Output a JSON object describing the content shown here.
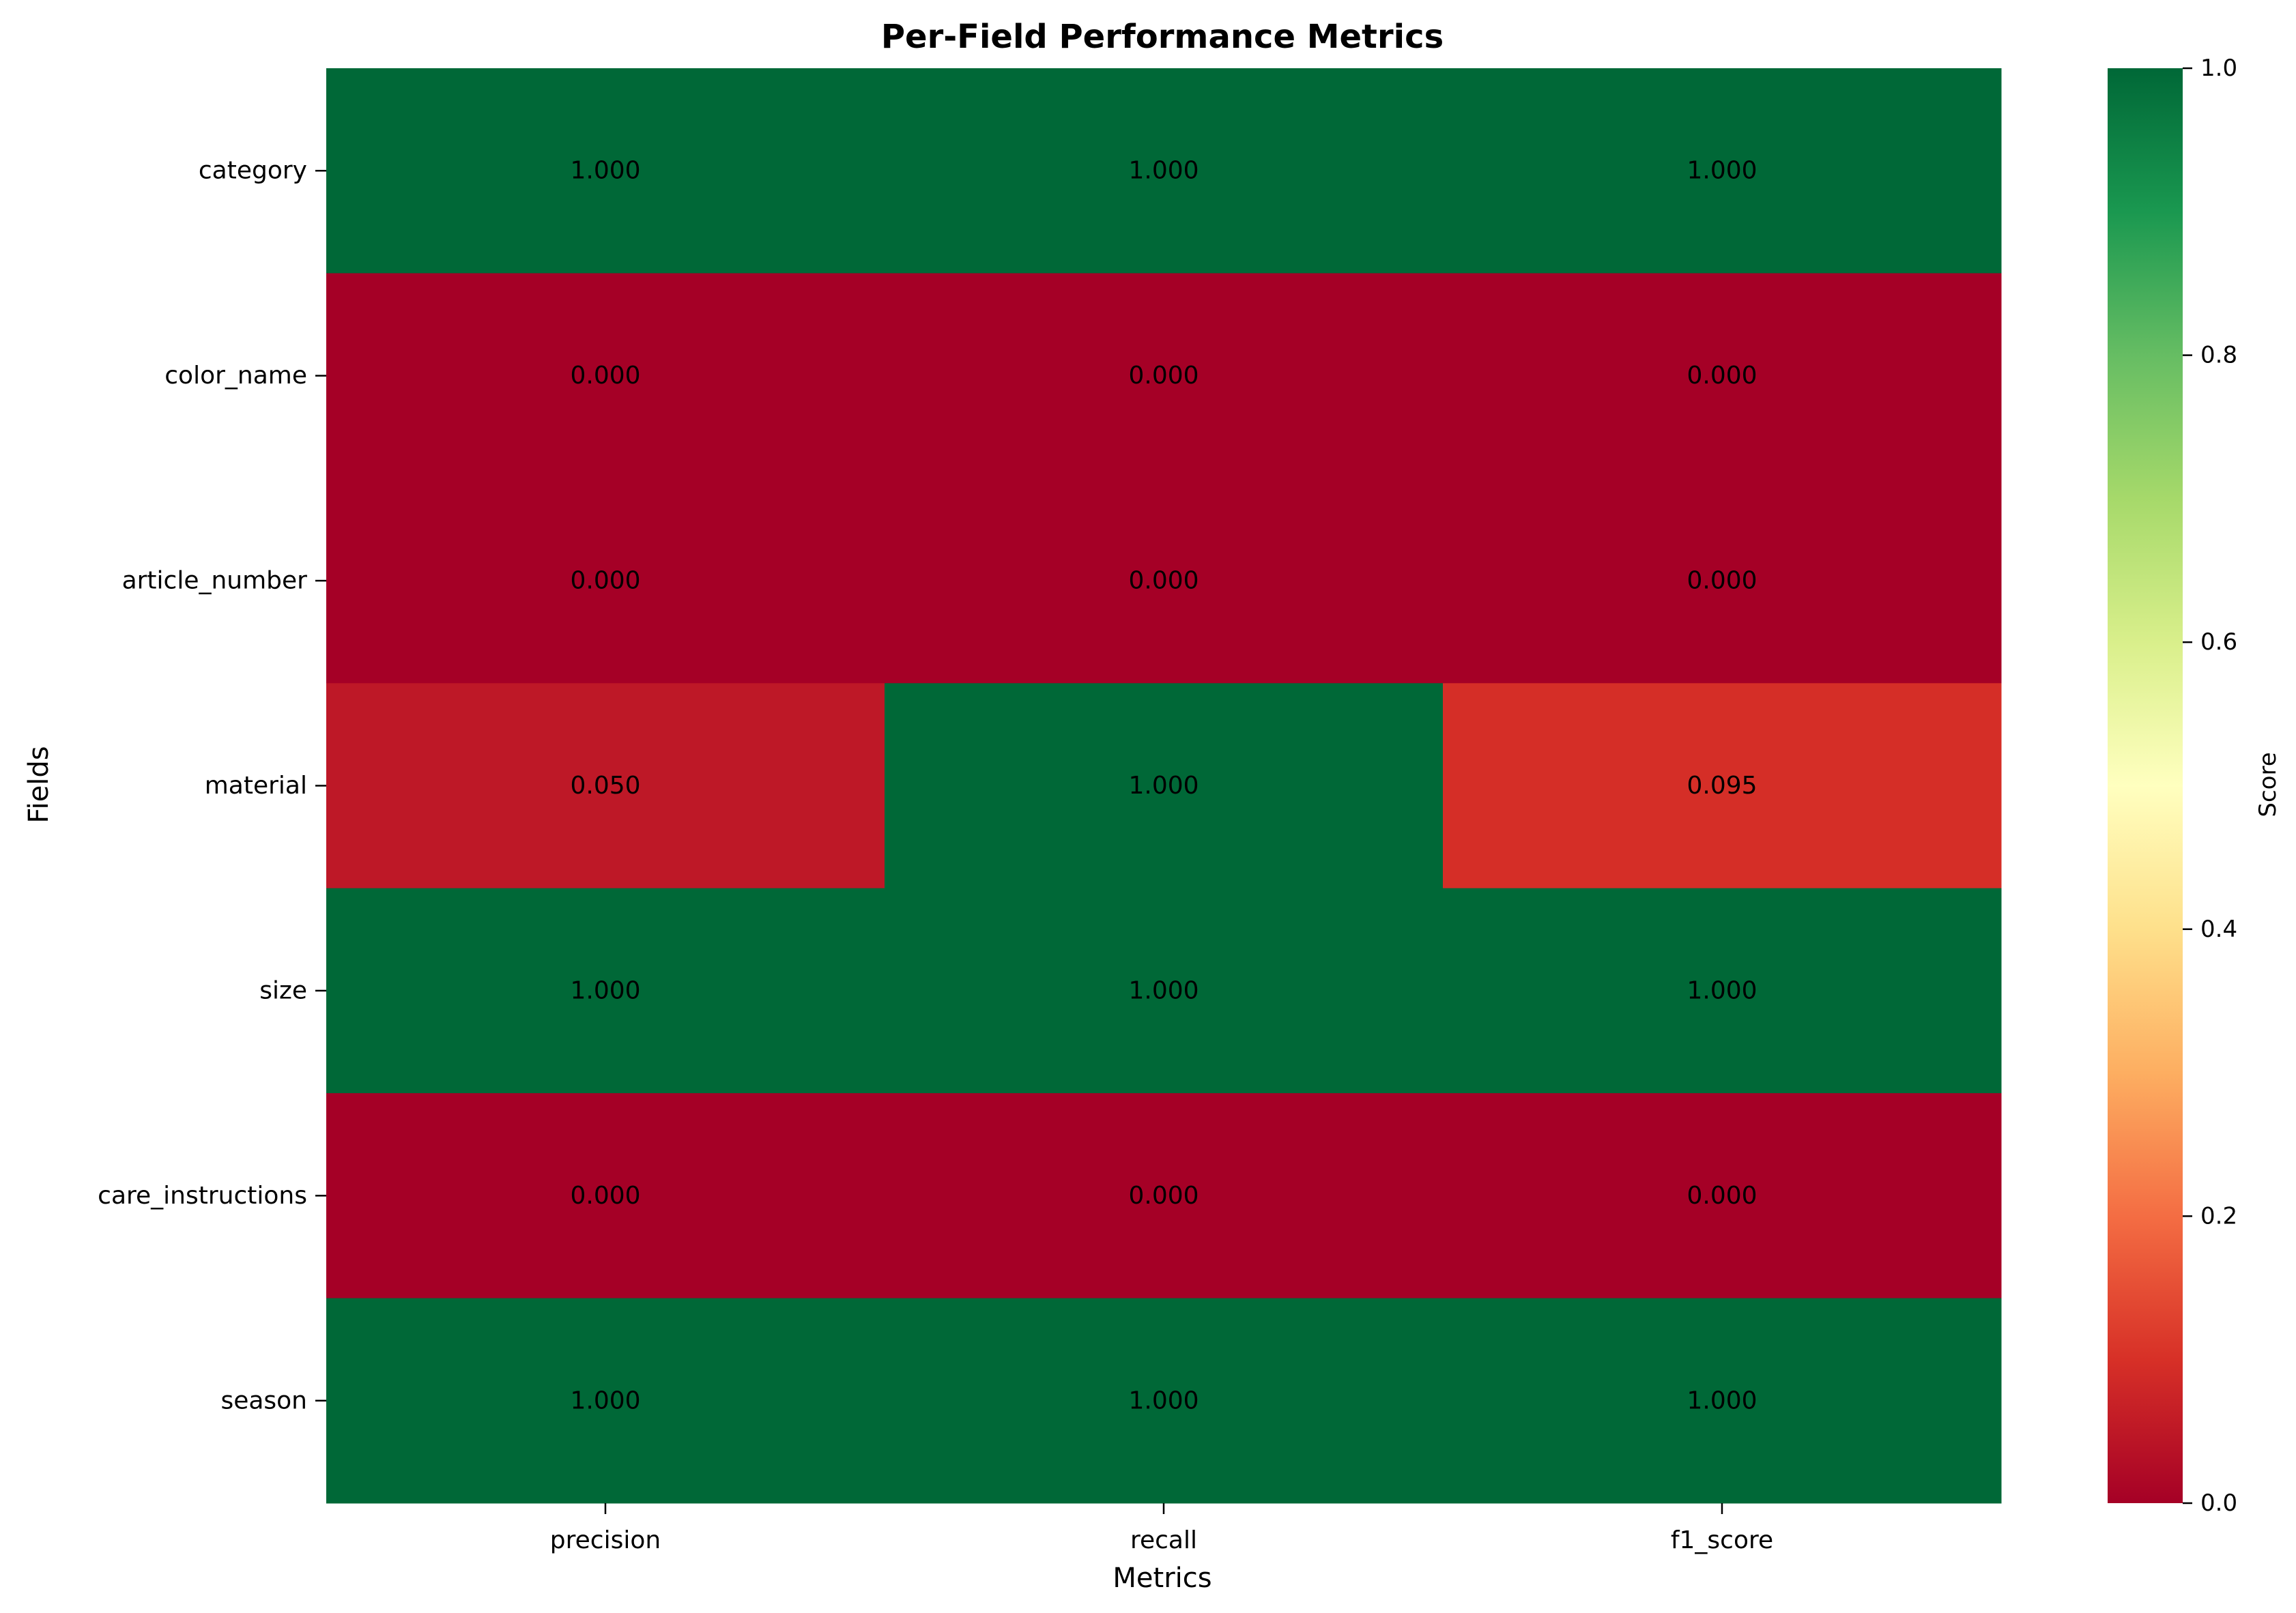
{
  "chart_data": {
    "type": "heatmap",
    "title": "Per-Field Performance Metrics",
    "xlabel": "Metrics",
    "ylabel": "Fields",
    "x_categories": [
      "precision",
      "recall",
      "f1_score"
    ],
    "y_categories": [
      "category",
      "color_name",
      "article_number",
      "material",
      "size",
      "care_instructions",
      "season"
    ],
    "values": [
      [
        1.0,
        1.0,
        1.0
      ],
      [
        0.0,
        0.0,
        0.0
      ],
      [
        0.0,
        0.0,
        0.0
      ],
      [
        0.05,
        1.0,
        0.095
      ],
      [
        1.0,
        1.0,
        1.0
      ],
      [
        0.0,
        0.0,
        0.0
      ],
      [
        1.0,
        1.0,
        1.0
      ]
    ],
    "cell_labels": [
      [
        "1.000",
        "1.000",
        "1.000"
      ],
      [
        "0.000",
        "0.000",
        "0.000"
      ],
      [
        "0.000",
        "0.000",
        "0.000"
      ],
      [
        "0.050",
        "1.000",
        "0.095"
      ],
      [
        "1.000",
        "1.000",
        "1.000"
      ],
      [
        "0.000",
        "0.000",
        "0.000"
      ],
      [
        "1.000",
        "1.000",
        "1.000"
      ]
    ],
    "colormap": "RdYlGn",
    "vmin": 0.0,
    "vmax": 1.0,
    "colorbar": {
      "label": "Score",
      "ticks": [
        "0.0",
        "0.2",
        "0.4",
        "0.6",
        "0.8",
        "1.0"
      ]
    },
    "grid": false
  }
}
